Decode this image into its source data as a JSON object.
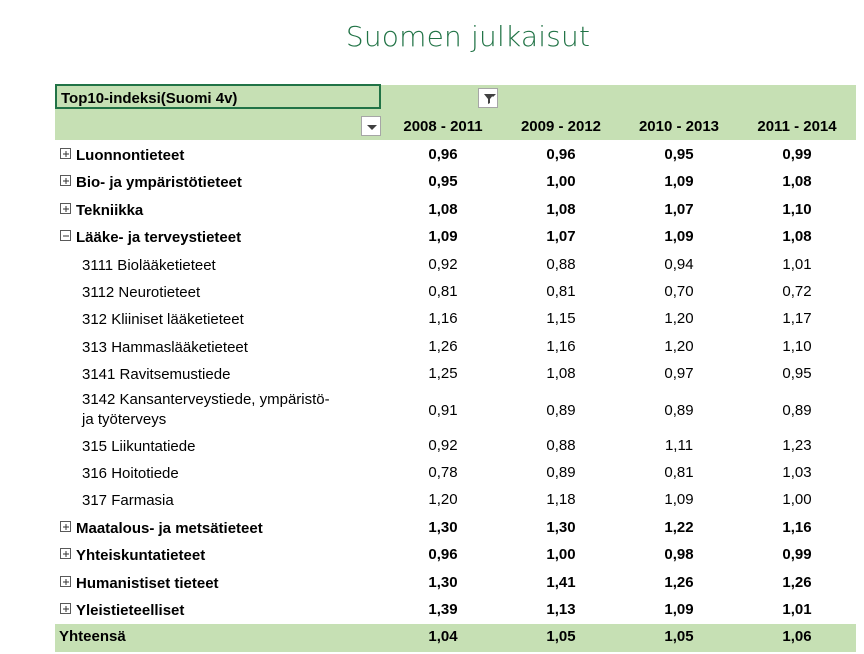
{
  "title": "Suomen julkaisut",
  "filter": {
    "label": "Top10-indeksi(Suomi 4v)"
  },
  "columns": [
    "2008 - 2011",
    "2009 - 2012",
    "2010 - 2013",
    "2011 - 2014"
  ],
  "rows": [
    {
      "label": "Luonnontieteet",
      "level": 0,
      "expand": "plus",
      "values": [
        "0,96",
        "0,96",
        "0,95",
        "0,99"
      ]
    },
    {
      "label": "Bio- ja ympäristötieteet",
      "level": 0,
      "expand": "plus",
      "values": [
        "0,95",
        "1,00",
        "1,09",
        "1,08"
      ]
    },
    {
      "label": "Tekniikka",
      "level": 0,
      "expand": "plus",
      "values": [
        "1,08",
        "1,08",
        "1,07",
        "1,10"
      ]
    },
    {
      "label": "Lääke- ja terveystieteet",
      "level": 0,
      "expand": "minus",
      "values": [
        "1,09",
        "1,07",
        "1,09",
        "1,08"
      ]
    },
    {
      "label": "3111 Biolääketieteet",
      "level": 1,
      "values": [
        "0,92",
        "0,88",
        "0,94",
        "1,01"
      ]
    },
    {
      "label": "3112 Neurotieteet",
      "level": 1,
      "values": [
        "0,81",
        "0,81",
        "0,70",
        "0,72"
      ]
    },
    {
      "label": "312 Kliiniset lääketieteet",
      "level": 1,
      "values": [
        "1,16",
        "1,15",
        "1,20",
        "1,17"
      ]
    },
    {
      "label": "313 Hammaslääketieteet",
      "level": 1,
      "values": [
        "1,26",
        "1,16",
        "1,20",
        "1,10"
      ]
    },
    {
      "label": "3141 Ravitsemustiede",
      "level": 1,
      "values": [
        "1,25",
        "1,08",
        "0,97",
        "0,95"
      ]
    },
    {
      "label": "3142 Kansanterveystiede, ympäristö-",
      "label2": "ja työterveys",
      "level": 1,
      "values": [
        "0,91",
        "0,89",
        "0,89",
        "0,89"
      ]
    },
    {
      "label": "315 Liikuntatiede",
      "level": 1,
      "values": [
        "0,92",
        "0,88",
        "1,11",
        "1,23"
      ]
    },
    {
      "label": "316 Hoitotiede",
      "level": 1,
      "values": [
        "0,78",
        "0,89",
        "0,81",
        "1,03"
      ]
    },
    {
      "label": "317 Farmasia",
      "level": 1,
      "values": [
        "1,20",
        "1,18",
        "1,09",
        "1,00"
      ]
    },
    {
      "label": "Maatalous- ja metsätieteet",
      "level": 0,
      "expand": "plus",
      "values": [
        "1,30",
        "1,30",
        "1,22",
        "1,16"
      ]
    },
    {
      "label": "Yhteiskuntatieteet",
      "level": 0,
      "expand": "plus",
      "values": [
        "0,96",
        "1,00",
        "0,98",
        "0,99"
      ]
    },
    {
      "label": "Humanistiset tieteet",
      "level": 0,
      "expand": "plus",
      "values": [
        "1,30",
        "1,41",
        "1,26",
        "1,26"
      ]
    },
    {
      "label": "Yleistieteelliset",
      "level": 0,
      "expand": "plus",
      "values": [
        "1,39",
        "1,13",
        "1,09",
        "1,01"
      ]
    }
  ],
  "total": {
    "label": "Yhteensä",
    "values": [
      "1,04",
      "1,05",
      "1,05",
      "1,06"
    ]
  },
  "colors": {
    "title": "#217346",
    "header_band": "#c6e0b4",
    "selection_border": "#217346"
  }
}
